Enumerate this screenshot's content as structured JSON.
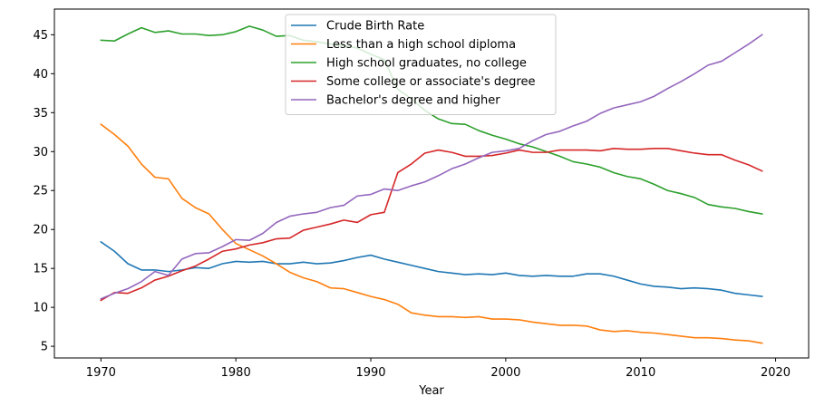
{
  "chart_data": {
    "type": "line",
    "xlabel": "Year",
    "ylabel": "",
    "xlim": [
      1966.55,
      2022.45
    ],
    "ylim": [
      3.5,
      48.3
    ],
    "xticks": [
      1970,
      1980,
      1990,
      2000,
      2010,
      2020
    ],
    "yticks": [
      5,
      10,
      15,
      20,
      25,
      30,
      35,
      40,
      45
    ],
    "legend_position": "top-center",
    "grid": false,
    "x": [
      1970,
      1971,
      1972,
      1973,
      1974,
      1975,
      1976,
      1977,
      1978,
      1979,
      1980,
      1981,
      1982,
      1983,
      1984,
      1985,
      1986,
      1987,
      1988,
      1989,
      1990,
      1991,
      1992,
      1993,
      1994,
      1995,
      1996,
      1997,
      1998,
      1999,
      2000,
      2001,
      2002,
      2003,
      2004,
      2005,
      2006,
      2007,
      2008,
      2009,
      2010,
      2011,
      2012,
      2013,
      2014,
      2015,
      2016,
      2017,
      2018,
      2019
    ],
    "series": [
      {
        "name": "Crude Birth Rate",
        "color": "#1f77b4",
        "values": [
          18.4,
          17.2,
          15.6,
          14.8,
          14.8,
          14.6,
          14.8,
          15.1,
          15.0,
          15.6,
          15.9,
          15.8,
          15.9,
          15.6,
          15.6,
          15.8,
          15.6,
          15.7,
          16.0,
          16.4,
          16.7,
          16.2,
          15.8,
          15.4,
          15.0,
          14.6,
          14.4,
          14.2,
          14.3,
          14.2,
          14.4,
          14.1,
          14.0,
          14.1,
          14.0,
          14.0,
          14.3,
          14.3,
          14.0,
          13.5,
          13.0,
          12.7,
          12.6,
          12.4,
          12.5,
          12.4,
          12.2,
          11.8,
          11.6,
          11.4
        ]
      },
      {
        "name": "Less than a high school diploma",
        "color": "#ff7f0e",
        "values": [
          33.5,
          32.2,
          30.7,
          28.4,
          26.7,
          26.5,
          24.0,
          22.8,
          22.0,
          20.0,
          18.2,
          17.4,
          16.6,
          15.6,
          14.5,
          13.8,
          13.3,
          12.5,
          12.4,
          11.9,
          11.4,
          11.0,
          10.4,
          9.3,
          9.0,
          8.8,
          8.8,
          8.7,
          8.8,
          8.5,
          8.5,
          8.4,
          8.1,
          7.9,
          7.7,
          7.7,
          7.6,
          7.1,
          6.9,
          7.0,
          6.8,
          6.7,
          6.5,
          6.3,
          6.1,
          6.1,
          6.0,
          5.8,
          5.7,
          5.4
        ]
      },
      {
        "name": "High school graduates, no college",
        "color": "#2ca02c",
        "values": [
          44.3,
          44.2,
          45.1,
          45.9,
          45.3,
          45.5,
          45.1,
          45.1,
          44.9,
          45.0,
          45.4,
          46.1,
          45.6,
          44.8,
          44.9,
          44.3,
          44.1,
          43.8,
          43.6,
          43.3,
          42.5,
          41.8,
          38.0,
          36.8,
          35.3,
          34.2,
          33.6,
          33.5,
          32.7,
          32.1,
          31.6,
          31.0,
          30.6,
          30.0,
          29.4,
          28.7,
          28.4,
          28.0,
          27.3,
          26.8,
          26.5,
          25.8,
          25.0,
          24.6,
          24.1,
          23.2,
          22.9,
          22.7,
          22.3,
          22.0
        ]
      },
      {
        "name": "Some college or associate's degree",
        "color": "#d62728",
        "values": [
          10.9,
          11.9,
          11.8,
          12.5,
          13.5,
          14.0,
          14.7,
          15.3,
          16.2,
          17.2,
          17.5,
          18.0,
          18.3,
          18.8,
          18.9,
          19.9,
          20.3,
          20.7,
          21.2,
          20.9,
          21.9,
          22.2,
          27.3,
          28.4,
          29.8,
          30.2,
          29.9,
          29.4,
          29.4,
          29.5,
          29.8,
          30.2,
          29.9,
          29.9,
          30.2,
          30.2,
          30.2,
          30.1,
          30.4,
          30.3,
          30.3,
          30.4,
          30.4,
          30.1,
          29.8,
          29.6,
          29.6,
          28.9,
          28.3,
          27.5
        ]
      },
      {
        "name": "Bachelor's degree and higher",
        "color": "#9467bd",
        "values": [
          11.1,
          11.8,
          12.4,
          13.3,
          14.6,
          14.1,
          16.2,
          16.9,
          17.0,
          17.8,
          18.7,
          18.6,
          19.5,
          20.9,
          21.7,
          22.0,
          22.2,
          22.8,
          23.1,
          24.3,
          24.5,
          25.2,
          25.0,
          25.6,
          26.1,
          26.9,
          27.8,
          28.4,
          29.2,
          29.9,
          30.1,
          30.4,
          31.4,
          32.2,
          32.6,
          33.3,
          33.9,
          34.9,
          35.6,
          36.0,
          36.4,
          37.1,
          38.1,
          39.0,
          40.0,
          41.1,
          41.6,
          42.7,
          43.8,
          45.0
        ]
      }
    ]
  }
}
